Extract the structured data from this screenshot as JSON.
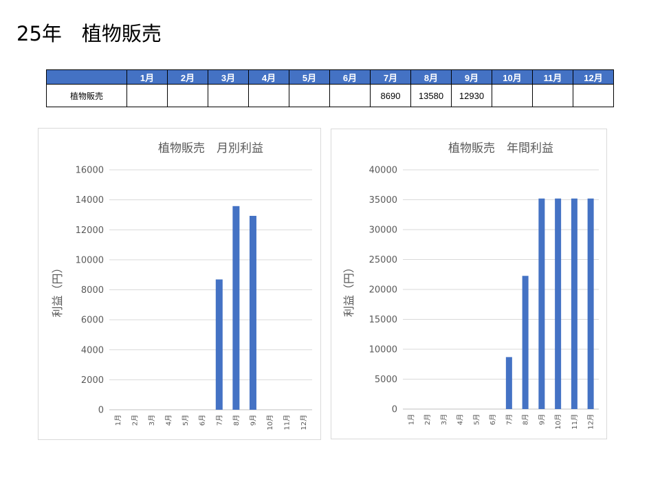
{
  "page": {
    "title": "25年　植物販売"
  },
  "table": {
    "headers": [
      "",
      "1月",
      "2月",
      "3月",
      "4月",
      "5月",
      "6月",
      "7月",
      "8月",
      "9月",
      "10月",
      "11月",
      "12月"
    ],
    "row_label": "植物販売",
    "values": [
      "",
      "",
      "",
      "",
      "",
      "",
      "8690",
      "13580",
      "12930",
      "",
      "",
      ""
    ]
  },
  "colors": {
    "bar": "#4472c4",
    "header": "#4472c4",
    "grid": "#d9d9d9"
  },
  "chart_data": [
    {
      "type": "bar",
      "title": "植物販売　月別利益",
      "ylabel": "利益（円）",
      "xlabel": "",
      "categories": [
        "1月",
        "2月",
        "3月",
        "4月",
        "5月",
        "6月",
        "7月",
        "8月",
        "9月",
        "10月",
        "11月",
        "12月"
      ],
      "values": [
        0,
        0,
        0,
        0,
        0,
        0,
        8690,
        13580,
        12930,
        0,
        0,
        0
      ],
      "ylim": [
        0,
        16000
      ],
      "yticks": [
        "0",
        "2000",
        "4000",
        "6000",
        "8000",
        "10000",
        "12000",
        "14000",
        "16000"
      ],
      "grid": true,
      "legend": "none"
    },
    {
      "type": "bar",
      "title": "植物販売　年間利益",
      "ylabel": "利益（円）",
      "xlabel": "",
      "categories": [
        "1月",
        "2月",
        "3月",
        "4月",
        "5月",
        "6月",
        "7月",
        "8月",
        "9月",
        "10月",
        "11月",
        "12月"
      ],
      "values": [
        0,
        0,
        0,
        0,
        0,
        0,
        8690,
        22270,
        35200,
        35200,
        35200,
        35200
      ],
      "ylim": [
        0,
        40000
      ],
      "yticks": [
        "0",
        "5000",
        "10000",
        "15000",
        "20000",
        "25000",
        "30000",
        "35000",
        "40000"
      ],
      "grid": true,
      "legend": "none"
    }
  ]
}
